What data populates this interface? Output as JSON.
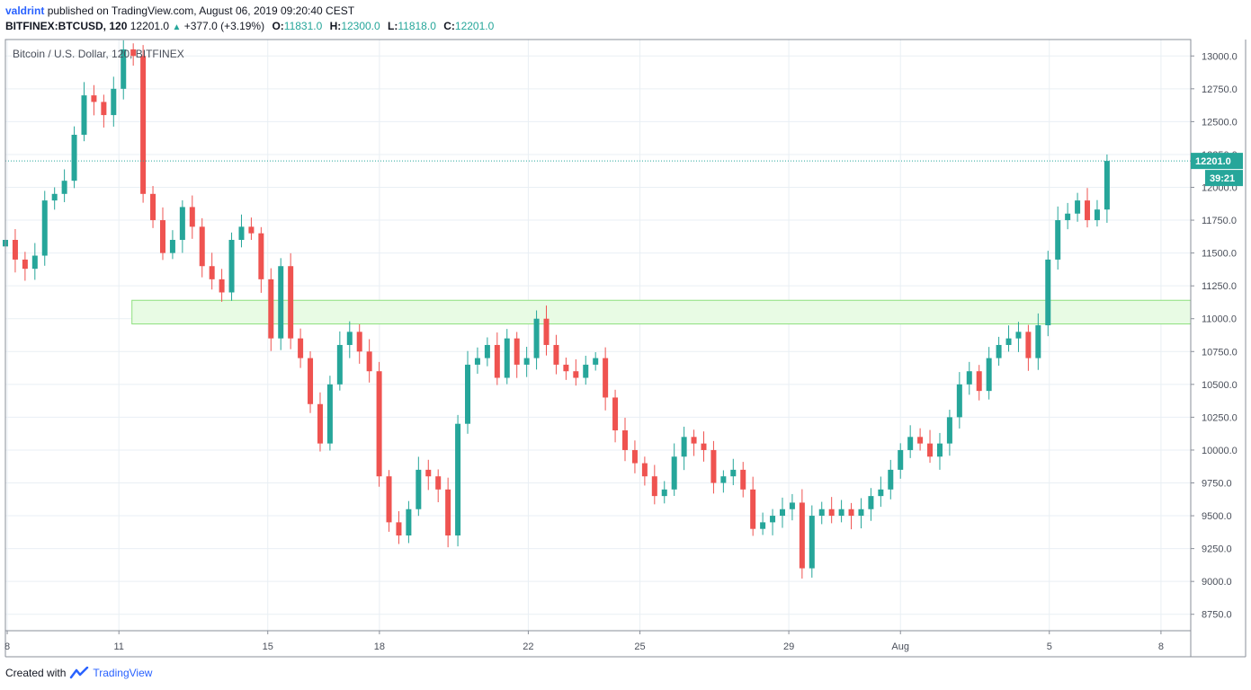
{
  "header": {
    "author": "valdrint",
    "published_text": "published on TradingView.com, August 06, 2019 09:20:40 CEST",
    "symbol": "BITFINEX:BTCUSD",
    "interval": "120",
    "last": "12201.0",
    "change": "+377.0 (+3.19%)",
    "open_label": "O:",
    "open": "11831.0",
    "high_label": "H:",
    "high": "12300.0",
    "low_label": "L:",
    "low": "11818.0",
    "close_label": "C:",
    "close": "12201.0"
  },
  "footer": {
    "created_with": "Created with",
    "brand": "TradingView"
  },
  "colors": {
    "up": "#26a69a",
    "down": "#ef5350",
    "zone_fill": "#e8fbe4",
    "zone_stroke": "#8ee07e",
    "grid": "#e9eff4",
    "price_line": "#26a69a"
  },
  "chart_data": {
    "type": "candlestick",
    "title": "Bitcoin / U.S. Dollar, 120, BITFINEX",
    "xlabel": "",
    "ylabel": "",
    "ylim": [
      8625,
      13125
    ],
    "y_ticks": [
      "8750.0",
      "9000.0",
      "9250.0",
      "9500.0",
      "9750.0",
      "10000.0",
      "10250.0",
      "10500.0",
      "10750.0",
      "11000.0",
      "11250.0",
      "11500.0",
      "11750.0",
      "12000.0",
      "12250.0",
      "12500.0",
      "12750.0",
      "13000.0"
    ],
    "x_ticks": [
      {
        "label": "8",
        "day": 8
      },
      {
        "label": "11",
        "day": 11
      },
      {
        "label": "15",
        "day": 15
      },
      {
        "label": "18",
        "day": 18
      },
      {
        "label": "22",
        "day": 22
      },
      {
        "label": "25",
        "day": 25
      },
      {
        "label": "29",
        "day": 29
      },
      {
        "label": "Aug",
        "day": 32
      },
      {
        "label": "5",
        "day": 36
      },
      {
        "label": "8",
        "day": 39
      }
    ],
    "x_range_days": [
      7.95,
      39.8
    ],
    "last_price": 12201.0,
    "last_price_label": "12201.0",
    "countdown": "39:21",
    "zone": {
      "x_start_day": 11.35,
      "x_end_day": 39.8,
      "y_low": 10960,
      "y_high": 11140
    },
    "closes": [
      11600,
      11450,
      11380,
      11480,
      11900,
      11950,
      12050,
      12400,
      12700,
      12650,
      12550,
      12750,
      13050,
      13000,
      11950,
      11750,
      11500,
      11600,
      11850,
      11700,
      11400,
      11300,
      11200,
      11600,
      11700,
      11650,
      11300,
      10850,
      11400,
      10850,
      10700,
      10350,
      10050,
      10500,
      10800,
      10900,
      10750,
      10600,
      9800,
      9450,
      9350,
      9550,
      9850,
      9800,
      9700,
      9350,
      10200,
      10650,
      10700,
      10800,
      10550,
      10850,
      10650,
      10700,
      11000,
      10800,
      10650,
      10600,
      10550,
      10650,
      10700,
      10400,
      10150,
      10000,
      9900,
      9800,
      9650,
      9700,
      9950,
      10100,
      10050,
      10000,
      9750,
      9800,
      9850,
      9700,
      9400,
      9450,
      9500,
      9550,
      9600,
      9100,
      9500,
      9550,
      9500,
      9550,
      9500,
      9550,
      9650,
      9700,
      9850,
      10000,
      10100,
      10050,
      9950,
      10050,
      10250,
      10500,
      10600,
      10450,
      10700,
      10800,
      10850,
      10900,
      10700,
      10950,
      11450,
      11750,
      11800,
      11900,
      11750,
      11831,
      12201
    ]
  }
}
